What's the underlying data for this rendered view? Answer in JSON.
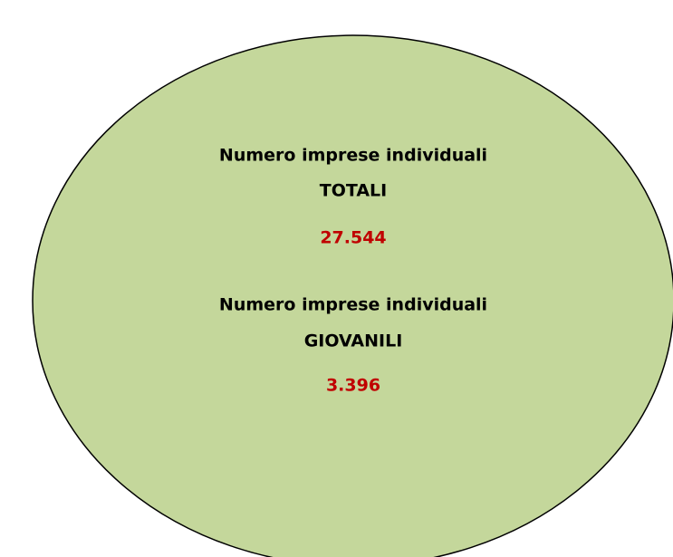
{
  "blocks": [
    {
      "label": "Numero imprese individuali",
      "category": "TOTALI",
      "value": "27.544"
    },
    {
      "label": "Numero imprese individuali",
      "category": "GIOVANILI",
      "value": "3.396"
    }
  ]
}
